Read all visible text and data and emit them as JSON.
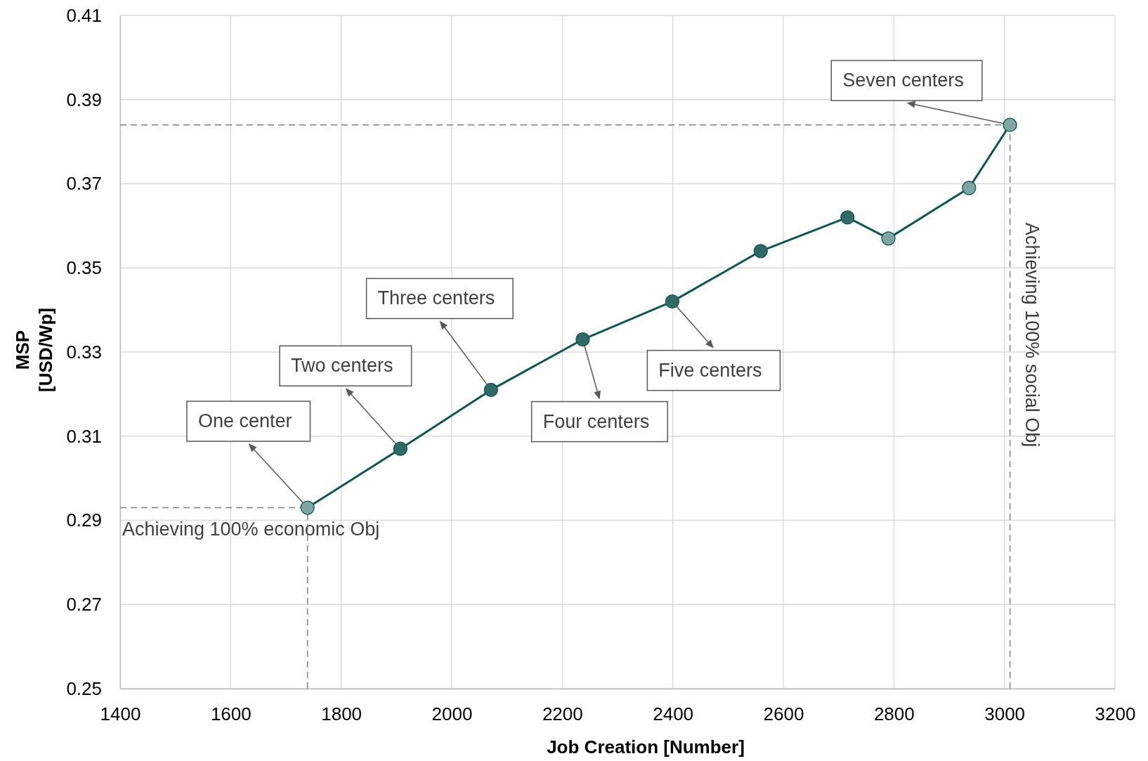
{
  "chart_data": {
    "type": "line",
    "xlabel": "Job Creation [Number]",
    "ylabel": "MSP [USD/Wp]",
    "x": [
      1739,
      1907,
      2071,
      2237,
      2399,
      2559,
      2716,
      2790,
      2936,
      3010
    ],
    "series": [
      {
        "color": "#0e5653",
        "colors": [
          "#7fa6a3",
          "#2f6a66",
          "#2f6a66",
          "#2f6a66",
          "#2f6a66",
          "#2f6a66",
          "#2f6a66",
          "#7fa6a3",
          "#7fa6a3",
          "#7fa6a3"
        ],
        "values": [
          0.293,
          0.307,
          0.321,
          0.333,
          0.342,
          0.354,
          0.362,
          0.357,
          0.369,
          0.384
        ]
      }
    ],
    "xlim": [
      1400,
      3200
    ],
    "xticks": [
      1400,
      1600,
      1800,
      2000,
      2200,
      2400,
      2600,
      2800,
      3000,
      3200
    ],
    "ylim": [
      0.25,
      0.41
    ],
    "yticks": [
      0.25,
      0.27,
      0.29,
      0.31,
      0.33,
      0.35,
      0.37,
      0.39,
      0.41
    ],
    "grid": true,
    "marker": "circle",
    "line_style": "solid",
    "ref_lines": [
      {
        "axis": "y",
        "value": 0.293,
        "label": "Achieving 100% economic Obj",
        "color": "#808080",
        "line_style": "dashed"
      },
      {
        "axis": "x",
        "value": 1739,
        "color": "#808080",
        "line_style": "dashed"
      },
      {
        "axis": "y",
        "value": 0.384,
        "color": "#808080",
        "line_style": "dashed"
      },
      {
        "axis": "x",
        "value": 3010,
        "label": "Achieving 100% social Obj",
        "color": "#808080",
        "line_style": "dashed"
      }
    ],
    "annotations": [
      {
        "text": "One center",
        "x": 1739,
        "y": 0.293
      },
      {
        "text": "Two centers",
        "x": 1907,
        "y": 0.307
      },
      {
        "text": "Three centers",
        "x": 2071,
        "y": 0.321
      },
      {
        "text": "Four centers",
        "x": 2237,
        "y": 0.333
      },
      {
        "text": "Five centers",
        "x": 2399,
        "y": 0.342
      },
      {
        "text": "Seven centers",
        "x": 3010,
        "y": 0.384
      }
    ]
  }
}
